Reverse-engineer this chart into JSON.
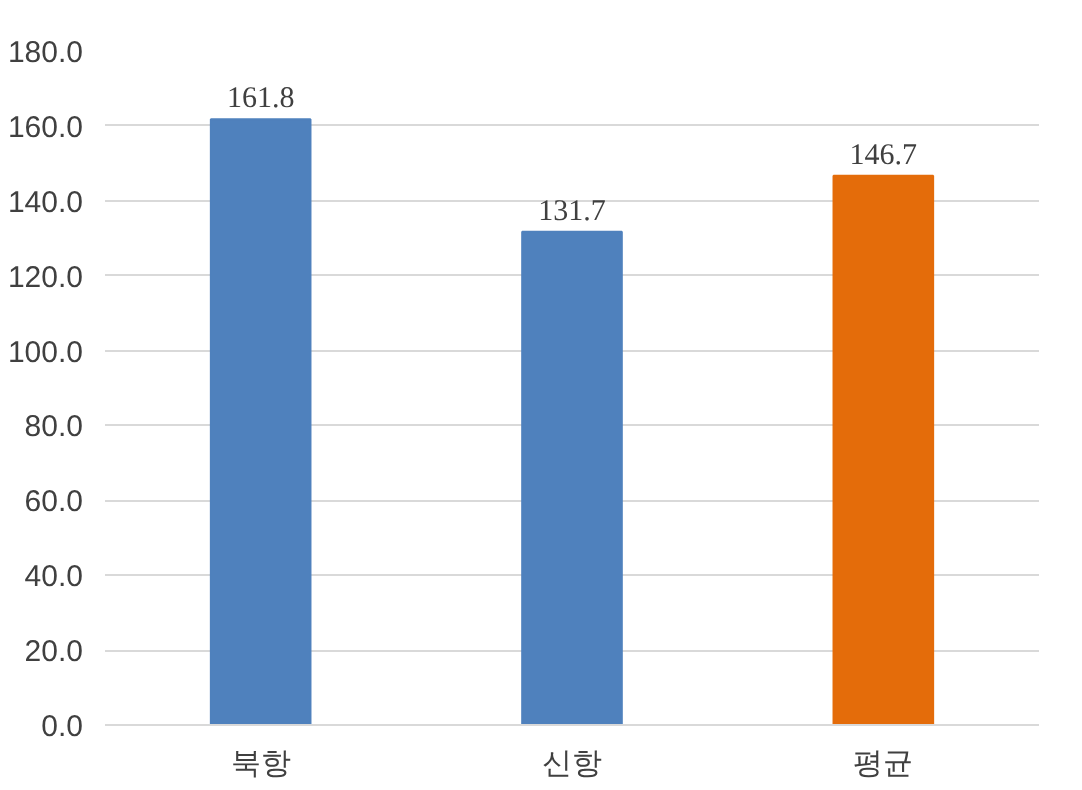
{
  "chart_data": {
    "type": "bar",
    "categories": [
      "북항",
      "신항",
      "평균"
    ],
    "values": [
      161.8,
      131.7,
      146.7
    ],
    "colors": [
      "#4f81bd",
      "#4f81bd",
      "#e46c0a"
    ],
    "ylim": [
      0,
      180
    ],
    "yticks": [
      {
        "value": 0,
        "label": "0.0"
      },
      {
        "value": 20,
        "label": "20.0"
      },
      {
        "value": 40,
        "label": "40.0"
      },
      {
        "value": 60,
        "label": "60.0"
      },
      {
        "value": 80,
        "label": "80.0"
      },
      {
        "value": 100,
        "label": "100.0"
      },
      {
        "value": 120,
        "label": "120.0"
      },
      {
        "value": 140,
        "label": "140.0"
      },
      {
        "value": 160,
        "label": "160.0"
      },
      {
        "value": 180,
        "label": "180.0"
      }
    ],
    "grid": "y",
    "data_labels": true
  }
}
